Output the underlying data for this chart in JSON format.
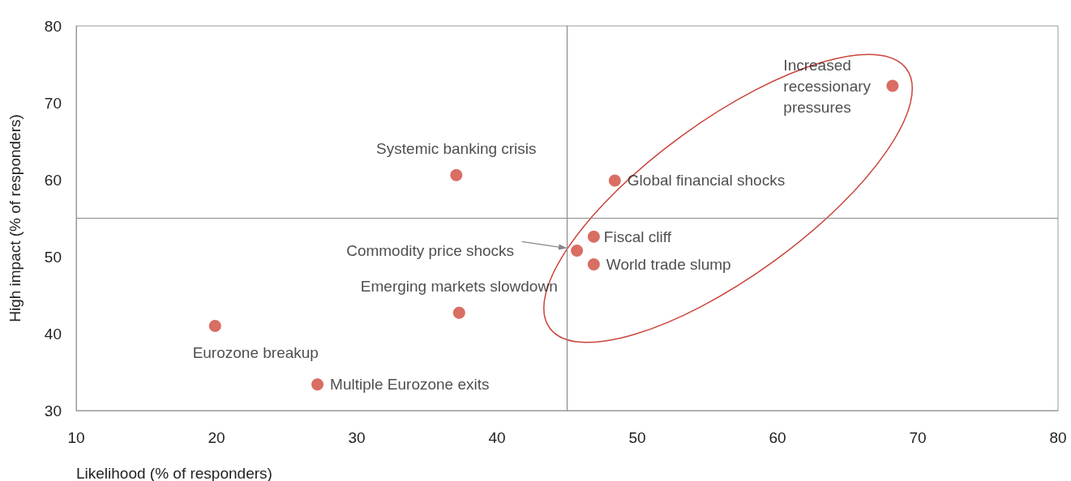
{
  "chart_data": {
    "type": "scatter",
    "xlabel": "Likelihood (% of responders)",
    "ylabel": "High impact (% of responders)",
    "xlim": [
      10,
      80
    ],
    "xticks": [
      10,
      20,
      30,
      40,
      50,
      60,
      70,
      80
    ],
    "ylim": [
      30,
      80
    ],
    "yticks": [
      30,
      40,
      50,
      60,
      70,
      80
    ],
    "grid": false,
    "legend": false,
    "marker": "circle",
    "ref_lines": [
      {
        "axis": "x",
        "value": 45,
        "color": "#8a8a8a"
      },
      {
        "axis": "y",
        "value": 55,
        "color": "#8a8a8a"
      }
    ],
    "series": [
      {
        "name": "Increased recessionary pressures",
        "color": "#d04a3c",
        "x": [
          68.2
        ],
        "values": [
          72.2
        ]
      },
      {
        "name": "Systemic banking crisis",
        "color": "#d04a3c",
        "x": [
          37.1
        ],
        "values": [
          60.6
        ]
      },
      {
        "name": "Global financial shocks",
        "color": "#d04a3c",
        "x": [
          48.4
        ],
        "values": [
          59.9
        ]
      },
      {
        "name": "Fiscal cliff",
        "color": "#d04a3c",
        "x": [
          46.9
        ],
        "values": [
          52.6
        ]
      },
      {
        "name": "Commodity price shocks",
        "color": "#d04a3c",
        "x": [
          45.7
        ],
        "values": [
          50.8
        ]
      },
      {
        "name": "World trade slump",
        "color": "#d04a3c",
        "x": [
          46.9
        ],
        "values": [
          49.0
        ]
      },
      {
        "name": "Emerging markets slowdown",
        "color": "#d04a3c",
        "x": [
          37.3
        ],
        "values": [
          42.7
        ]
      },
      {
        "name": "Eurozone breakup",
        "color": "#d04a3c",
        "x": [
          19.9
        ],
        "values": [
          41.0
        ]
      },
      {
        "name": "Multiple Eurozone exits",
        "color": "#d04a3c",
        "x": [
          27.2
        ],
        "values": [
          33.4
        ]
      }
    ]
  }
}
